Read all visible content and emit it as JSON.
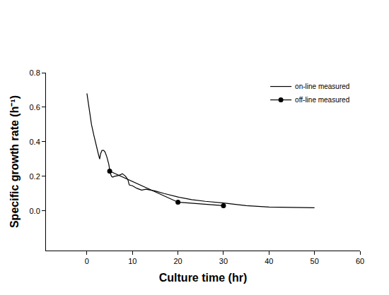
{
  "chart_data": {
    "type": "line",
    "x_label": "Culture time (hr)",
    "y_label": "Specific growth rate (h⁻¹)",
    "xlim": [
      -9,
      60
    ],
    "xticks": [
      0,
      10,
      20,
      30,
      40,
      50,
      60
    ],
    "ylim": [
      -0.23,
      0.8
    ],
    "yticks": [
      {
        "value": 0,
        "label": "0.0"
      },
      0.2,
      0.4,
      0.6,
      0.8
    ],
    "grid": false,
    "legend": "top-right",
    "series": [
      {
        "name": "on-line measured",
        "color": "#000000",
        "marker": "none",
        "line_style": "solid",
        "x": [
          0,
          0.5,
          1,
          1.5,
          2,
          2.5,
          2.8,
          3,
          3.3,
          3.7,
          4,
          4.4,
          4.8,
          5.1,
          5.4,
          5.7,
          6,
          7,
          7.8,
          8.5,
          9,
          9.3,
          10,
          11,
          12,
          13,
          14,
          15,
          17,
          20,
          23,
          26,
          30,
          35,
          40,
          45,
          50
        ],
        "values": [
          0.68,
          0.58,
          0.5,
          0.44,
          0.38,
          0.33,
          0.3,
          0.33,
          0.35,
          0.35,
          0.34,
          0.31,
          0.27,
          0.22,
          0.2,
          0.195,
          0.2,
          0.205,
          0.215,
          0.2,
          0.18,
          0.15,
          0.145,
          0.13,
          0.12,
          0.125,
          0.12,
          0.115,
          0.1,
          0.08,
          0.065,
          0.055,
          0.045,
          0.03,
          0.022,
          0.02,
          0.018
        ]
      },
      {
        "name": "off-line measured",
        "color": "#000000",
        "marker": "circle",
        "line_style": "solid",
        "x": [
          5,
          20,
          30
        ],
        "values": [
          0.23,
          0.05,
          0.03
        ]
      }
    ]
  }
}
